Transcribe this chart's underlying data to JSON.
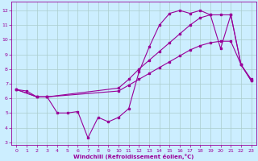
{
  "xlabel": "Windchill (Refroidissement éolien,°C)",
  "bg_color": "#cceeff",
  "grid_color": "#aacccc",
  "line_color": "#990099",
  "xlim": [
    -0.5,
    23.5
  ],
  "ylim": [
    2.8,
    12.6
  ],
  "xticks": [
    0,
    1,
    2,
    3,
    4,
    5,
    6,
    7,
    8,
    9,
    10,
    11,
    12,
    13,
    14,
    15,
    16,
    17,
    18,
    19,
    20,
    21,
    22,
    23
  ],
  "yticks": [
    3,
    4,
    5,
    6,
    7,
    8,
    9,
    10,
    11,
    12
  ],
  "line1_x": [
    0,
    1,
    2,
    3,
    4,
    5,
    6,
    7,
    8,
    9,
    10,
    11,
    12,
    13,
    14,
    15,
    16,
    17,
    18,
    19,
    20,
    21,
    22,
    23
  ],
  "line1_y": [
    6.6,
    6.5,
    6.1,
    6.1,
    5.0,
    5.0,
    5.1,
    3.3,
    4.7,
    4.4,
    4.7,
    5.3,
    7.8,
    9.5,
    11.0,
    11.8,
    12.0,
    11.8,
    12.0,
    11.7,
    9.4,
    11.7,
    8.3,
    7.3
  ],
  "line2_x": [
    0,
    2,
    3,
    10,
    11,
    12,
    13,
    14,
    15,
    16,
    17,
    18,
    19,
    20,
    21,
    22,
    23
  ],
  "line2_y": [
    6.6,
    6.1,
    6.1,
    6.5,
    6.9,
    7.3,
    7.7,
    8.1,
    8.5,
    8.9,
    9.3,
    9.6,
    9.8,
    9.9,
    9.9,
    8.3,
    7.2
  ],
  "line3_x": [
    0,
    2,
    3,
    10,
    11,
    12,
    13,
    14,
    15,
    16,
    17,
    18,
    19,
    20,
    21,
    22,
    23
  ],
  "line3_y": [
    6.6,
    6.1,
    6.1,
    6.7,
    7.3,
    8.0,
    8.6,
    9.2,
    9.8,
    10.4,
    11.0,
    11.5,
    11.7,
    11.7,
    11.7,
    8.3,
    7.2
  ]
}
